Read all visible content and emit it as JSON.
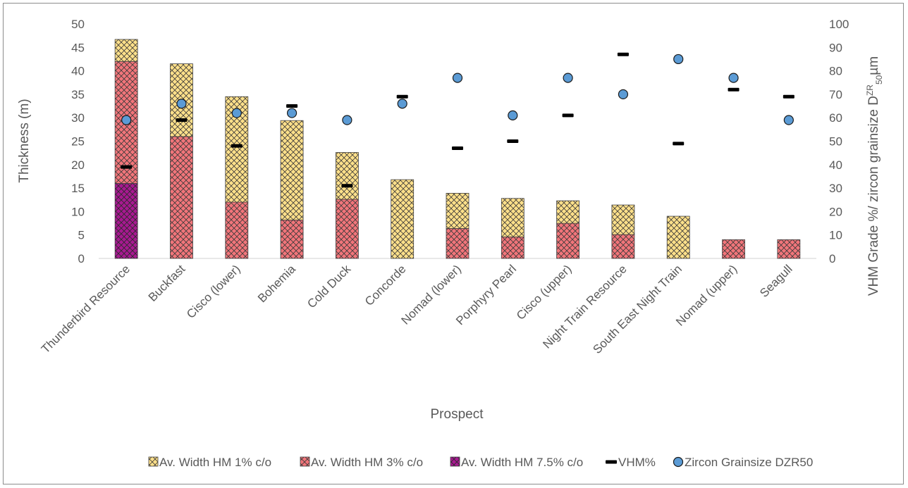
{
  "chart_data": {
    "type": "bar",
    "stacked": true,
    "xlabel": "Prospect",
    "ylabel": "Thickness (m)",
    "y2label_main": "VHM Grade %/ zircon grainsize D",
    "y2label_sup": "ZR",
    "y2label_sub": "50",
    "y2label_tail": "µm",
    "ylim": [
      0,
      50
    ],
    "y2lim": [
      0,
      100
    ],
    "yticks": [
      "0",
      "5",
      "10",
      "15",
      "20",
      "25",
      "30",
      "35",
      "40",
      "45",
      "50"
    ],
    "y2ticks": [
      "0",
      "10",
      "20",
      "30",
      "40",
      "50",
      "60",
      "70",
      "80",
      "90",
      "100"
    ],
    "grid": false,
    "legend_position": "bottom",
    "categories": [
      "Thunderbird  Resource",
      "Buckfast",
      "Cisco (lower)",
      "Bohemia",
      "Cold Duck",
      "Concorde",
      "Nomad (lower)",
      "Porphyry Pearl",
      "Cisco (upper)",
      "Night Train Resource",
      "South East Night Train",
      "Nomad (upper)",
      "Seagull"
    ],
    "series": [
      {
        "name": "Av. Width HM 1% c/o",
        "kind": "bar",
        "axis": "left",
        "color": "#ffe08a",
        "values": [
          4.7,
          15.5,
          22.5,
          21.2,
          10.0,
          16.8,
          7.5,
          8.2,
          4.8,
          6.3,
          9.0,
          0,
          0
        ]
      },
      {
        "name": "Av. Width HM 3% c/o",
        "kind": "bar",
        "axis": "left",
        "color": "#f2757a",
        "values": [
          26.0,
          26.0,
          12.0,
          8.2,
          12.6,
          0,
          6.4,
          4.6,
          7.5,
          5.1,
          0,
          4.0,
          4.0
        ]
      },
      {
        "name": "Av. Width HM 7.5% c/o",
        "kind": "bar",
        "axis": "left",
        "color": "#a81891",
        "values": [
          16.0,
          0,
          0,
          0,
          0,
          0,
          0,
          0,
          0,
          0,
          0,
          0,
          0
        ]
      },
      {
        "name": "VHM%",
        "kind": "dash",
        "axis": "right",
        "color": "#000000",
        "values": [
          39,
          59,
          48,
          65,
          31,
          69,
          47,
          50,
          61,
          87,
          49,
          72,
          69
        ]
      },
      {
        "name": "Zircon Grainsize DZR50",
        "kind": "point",
        "axis": "right",
        "color": "#5b9bd5",
        "values": [
          59,
          66,
          62,
          62,
          59,
          66,
          77,
          61,
          77,
          70,
          85,
          77,
          59
        ]
      }
    ]
  }
}
